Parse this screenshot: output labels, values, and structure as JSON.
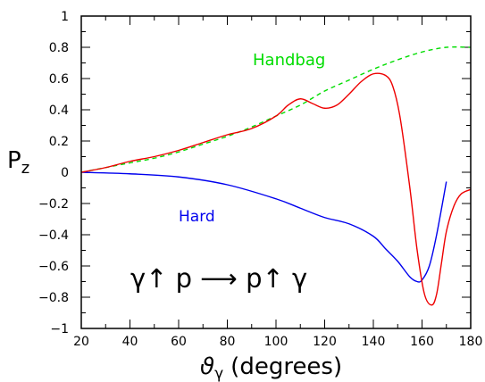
{
  "chart_data": {
    "type": "line",
    "xlabel": "ϑγ (degrees)",
    "xlabel_symbol": "ϑ",
    "xlabel_sub": "γ",
    "xlabel_unit": "(degrees)",
    "ylabel": "Pz",
    "ylabel_main": "P",
    "ylabel_sub": "z",
    "xlim": [
      20,
      180
    ],
    "ylim": [
      -1,
      1
    ],
    "x_ticks": [
      "20",
      "40",
      "60",
      "80",
      "100",
      "120",
      "140",
      "160",
      "180"
    ],
    "y_ticks": [
      "1",
      "0.8",
      "0.6",
      "0.4",
      "0.2",
      "0",
      "−0.2",
      "−0.4",
      "−0.6",
      "−0.8",
      "−1"
    ],
    "grid": false,
    "reaction": "γ↑ p  ⟶  p↑ γ",
    "series": [
      {
        "name": "Handbag",
        "color": "#00dd00",
        "dash": "dashed",
        "x": [
          20,
          30,
          40,
          50,
          60,
          70,
          80,
          90,
          100,
          110,
          120,
          130,
          140,
          150,
          160,
          170,
          180
        ],
        "y": [
          0.0,
          0.03,
          0.06,
          0.09,
          0.13,
          0.18,
          0.23,
          0.29,
          0.36,
          0.43,
          0.52,
          0.59,
          0.66,
          0.72,
          0.77,
          0.8,
          0.8
        ]
      },
      {
        "name": "Hard",
        "color": "#0000ee",
        "dash": "solid",
        "x": [
          20,
          40,
          60,
          80,
          100,
          110,
          120,
          130,
          140,
          145,
          150,
          155,
          158,
          160,
          163,
          166,
          170
        ],
        "y": [
          0.0,
          -0.01,
          -0.03,
          -0.08,
          -0.17,
          -0.23,
          -0.29,
          -0.33,
          -0.41,
          -0.49,
          -0.57,
          -0.67,
          -0.7,
          -0.69,
          -0.6,
          -0.4,
          -0.06
        ]
      },
      {
        "name": "",
        "color": "#ee0000",
        "dash": "solid",
        "x": [
          20,
          30,
          40,
          50,
          60,
          70,
          80,
          90,
          100,
          105,
          110,
          115,
          120,
          125,
          130,
          135,
          140,
          145,
          148,
          151,
          155,
          158,
          161,
          164,
          166,
          168,
          170,
          173,
          176,
          180
        ],
        "y": [
          0.0,
          0.03,
          0.07,
          0.1,
          0.14,
          0.19,
          0.24,
          0.28,
          0.36,
          0.43,
          0.47,
          0.44,
          0.41,
          0.43,
          0.5,
          0.58,
          0.63,
          0.62,
          0.55,
          0.35,
          -0.1,
          -0.5,
          -0.78,
          -0.85,
          -0.78,
          -0.58,
          -0.38,
          -0.22,
          -0.14,
          -0.11
        ]
      }
    ]
  }
}
